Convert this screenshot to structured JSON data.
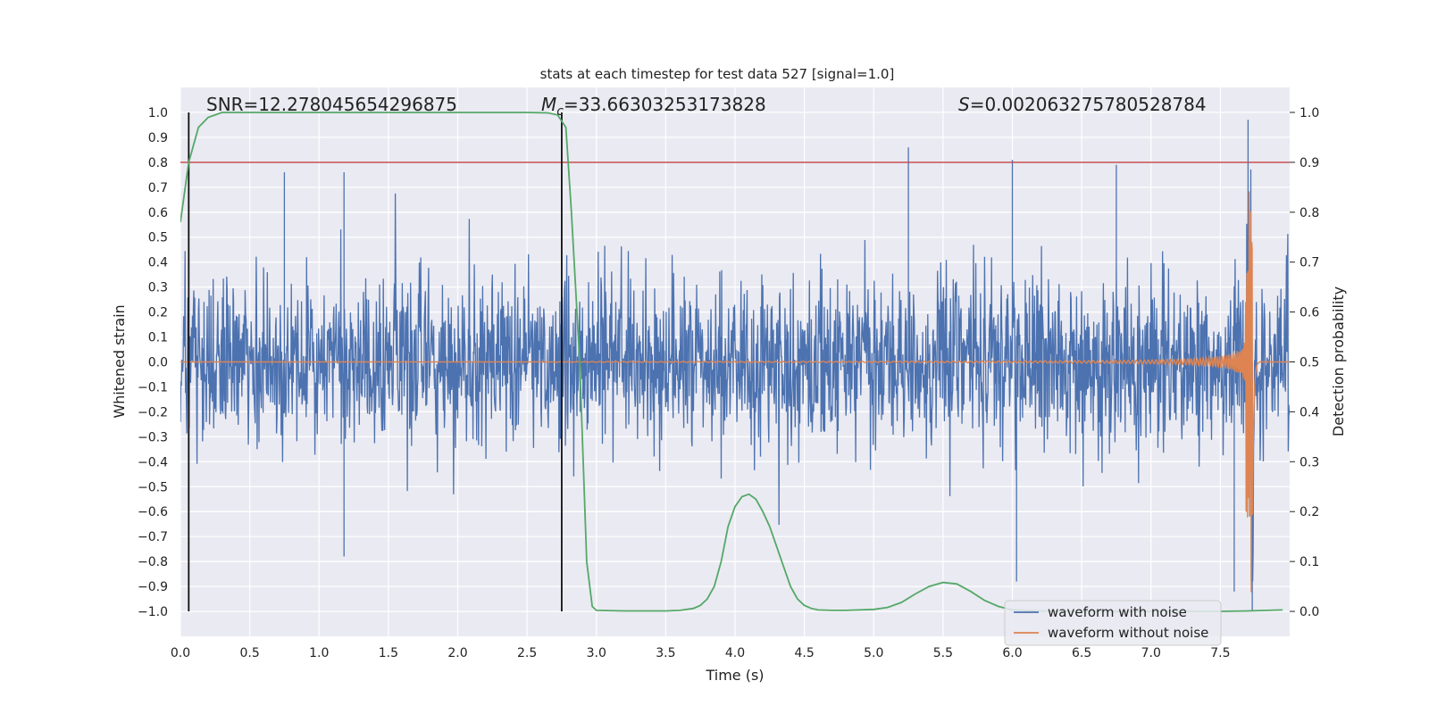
{
  "chart_data": {
    "type": "line",
    "title": "stats at each timestep for test data 527 [signal=1.0]",
    "xlabel": "Time (s)",
    "ylabel_left": "Whitened strain",
    "ylabel_right": "Detection probability",
    "xlim": [
      0.0,
      8.0
    ],
    "ylim_left": [
      -1.1,
      1.1
    ],
    "ylim_right": [
      -0.05,
      1.05
    ],
    "xticks": [
      "0.0",
      "0.5",
      "1.0",
      "1.5",
      "2.0",
      "2.5",
      "3.0",
      "3.5",
      "4.0",
      "4.5",
      "5.0",
      "5.5",
      "6.0",
      "6.5",
      "7.0",
      "7.5"
    ],
    "xtick_values": [
      0.0,
      0.5,
      1.0,
      1.5,
      2.0,
      2.5,
      3.0,
      3.5,
      4.0,
      4.5,
      5.0,
      5.5,
      6.0,
      6.5,
      7.0,
      7.5
    ],
    "yticks_left": [
      "1.0",
      "0.9",
      "0.8",
      "0.7",
      "0.6",
      "0.5",
      "0.4",
      "0.3",
      "0.2",
      "0.1",
      "0.0",
      "−0.1",
      "−0.2",
      "−0.3",
      "−0.4",
      "−0.5",
      "−0.6",
      "−0.7",
      "−0.8",
      "−0.9",
      "−1.0"
    ],
    "ytick_left_values": [
      1.0,
      0.9,
      0.8,
      0.7,
      0.6,
      0.5,
      0.4,
      0.3,
      0.2,
      0.1,
      0.0,
      -0.1,
      -0.2,
      -0.3,
      -0.4,
      -0.5,
      -0.6,
      -0.7,
      -0.8,
      -0.9,
      -1.0
    ],
    "yticks_right": [
      "1.0",
      "0.9",
      "0.8",
      "0.7",
      "0.6",
      "0.5",
      "0.4",
      "0.3",
      "0.2",
      "0.1",
      "0.0"
    ],
    "ytick_right_values": [
      1.0,
      0.9,
      0.8,
      0.7,
      0.6,
      0.5,
      0.4,
      0.3,
      0.2,
      0.1,
      0.0
    ],
    "annotations": {
      "snr": "SNR=12.278045654296875",
      "mc_symbol": "M",
      "mc_sub": "c",
      "mc_value": "=33.66303253173828",
      "s_symbol": "S",
      "s_value": "=0.002063275780528784"
    },
    "threshold": {
      "value": 0.9,
      "color": "#c44e52"
    },
    "vlines": [
      0.06,
      2.75
    ],
    "legend": {
      "position": "lower-right",
      "entries": [
        "waveform with noise",
        "waveform without noise"
      ]
    },
    "series": [
      {
        "name": "waveform with noise",
        "color": "#4c72b0",
        "description": "dense noisy whitened strain, typical envelope about ±0.45 with spikes to ±0.85",
        "spikes_t": [
          0.75,
          1.18,
          2.75,
          5.25,
          6.0,
          6.75,
          7.7
        ],
        "spikes_v": [
          0.76,
          0.76,
          0.75,
          0.86,
          0.81,
          0.79,
          0.97
        ],
        "neg_spikes_t": [
          1.18,
          6.03,
          7.6,
          7.73
        ],
        "neg_spikes_v": [
          -0.78,
          -0.88,
          -0.92,
          -1.0
        ]
      },
      {
        "name": "waveform without noise",
        "color": "#dd8452",
        "description": "chirp signal that grows in amplitude and frequency, merger near t=7.73 s",
        "merger_t": 7.73,
        "peak_amplitude": 0.95
      },
      {
        "name": "detection probability",
        "color": "#55a868",
        "axis": "right",
        "t": [
          0.0,
          0.06,
          0.13,
          0.2,
          0.3,
          0.4,
          0.6,
          1.0,
          1.5,
          2.0,
          2.5,
          2.65,
          2.72,
          2.78,
          2.82,
          2.88,
          2.93,
          2.97,
          3.0,
          3.2,
          3.5,
          3.6,
          3.7,
          3.75,
          3.8,
          3.85,
          3.9,
          3.95,
          4.0,
          4.05,
          4.1,
          4.15,
          4.2,
          4.25,
          4.3,
          4.35,
          4.4,
          4.45,
          4.5,
          4.55,
          4.6,
          4.7,
          4.8,
          5.0,
          5.1,
          5.2,
          5.3,
          5.4,
          5.5,
          5.6,
          5.7,
          5.8,
          5.9,
          6.0,
          6.2,
          6.5,
          7.0,
          7.5,
          7.7,
          7.95
        ],
        "v": [
          0.78,
          0.9,
          0.97,
          0.99,
          1.0,
          1.0,
          1.0,
          1.0,
          1.0,
          1.0,
          1.0,
          0.999,
          0.995,
          0.97,
          0.8,
          0.5,
          0.1,
          0.01,
          0.002,
          0.001,
          0.001,
          0.002,
          0.006,
          0.012,
          0.025,
          0.05,
          0.1,
          0.17,
          0.21,
          0.23,
          0.235,
          0.225,
          0.2,
          0.17,
          0.13,
          0.09,
          0.05,
          0.025,
          0.012,
          0.006,
          0.003,
          0.002,
          0.002,
          0.004,
          0.008,
          0.018,
          0.035,
          0.05,
          0.058,
          0.055,
          0.04,
          0.022,
          0.01,
          0.003,
          0.001,
          0.0,
          0.0,
          0.0,
          0.001,
          0.003
        ]
      }
    ]
  }
}
